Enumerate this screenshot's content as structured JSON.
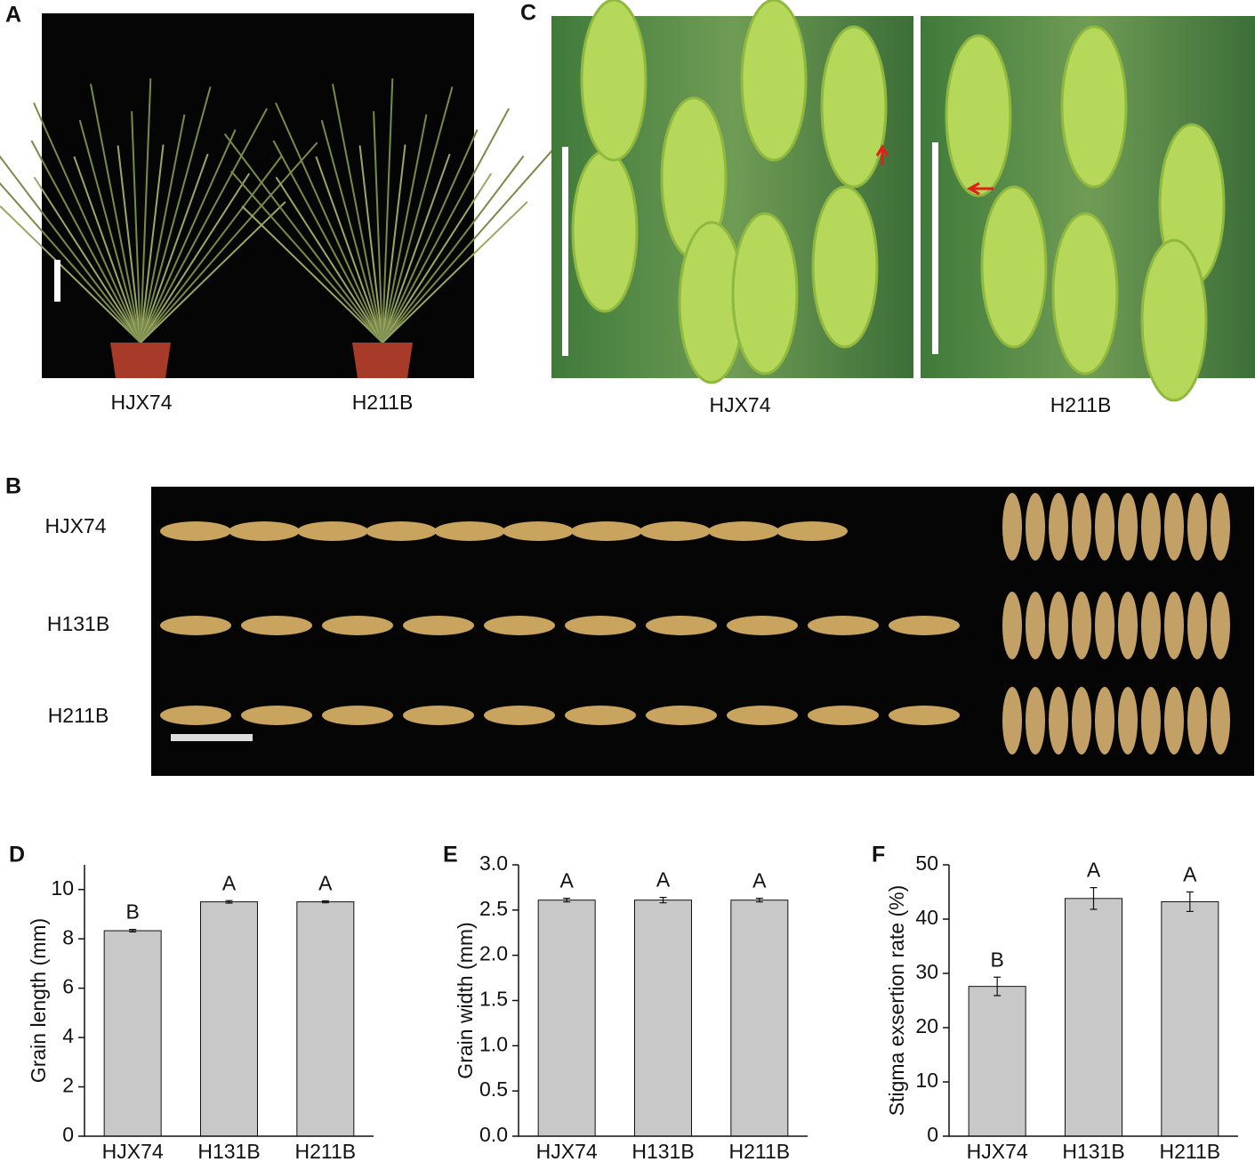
{
  "panels": {
    "A": {
      "letter": "A",
      "labels": [
        "HJX74",
        "H211B"
      ]
    },
    "B": {
      "letter": "B",
      "rows": [
        "HJX74",
        "H131B",
        "H211B"
      ]
    },
    "C": {
      "letter": "C",
      "labels": [
        "HJX74",
        "H211B"
      ]
    }
  },
  "chart_data": [
    {
      "type": "bar",
      "panel_label": "D",
      "y_label": "Grain length (mm)",
      "categories": [
        "HJX74",
        "H131B",
        "H211B"
      ],
      "values": [
        8.33,
        9.5,
        9.5
      ],
      "errors": [
        0.05,
        0.05,
        0.04
      ],
      "annotations": [
        "B",
        "A",
        "A"
      ],
      "color": "#c8c8c8",
      "ylim": [
        0,
        11
      ],
      "yticks": [
        0,
        2,
        4,
        6,
        8,
        10
      ]
    },
    {
      "type": "bar",
      "panel_label": "E",
      "y_label": "Grain width (mm)",
      "categories": [
        "HJX74",
        "H131B",
        "H211B"
      ],
      "values": [
        2.61,
        2.61,
        2.61
      ],
      "errors": [
        0.02,
        0.03,
        0.02
      ],
      "annotations": [
        "A",
        "A",
        "A"
      ],
      "color": "#c8c8c8",
      "ylim": [
        0,
        3.0
      ],
      "yticks": [
        {
          "value": 0,
          "label": "0.0"
        },
        0.5,
        {
          "value": 1,
          "label": "1.0"
        },
        1.5,
        {
          "value": 2,
          "label": "2.0"
        },
        2.5,
        {
          "value": 3,
          "label": "3.0"
        }
      ]
    },
    {
      "type": "bar",
      "panel_label": "F",
      "y_label": "Stigma exsertion rate (%)",
      "categories": [
        "HJX74",
        "H131B",
        "H211B"
      ],
      "values": [
        27.6,
        43.8,
        43.2
      ],
      "errors": [
        1.7,
        2.0,
        1.8
      ],
      "annotations": [
        "B",
        "A",
        "A"
      ],
      "color": "#c8c8c8",
      "ylim": [
        0,
        50
      ],
      "yticks": [
        0,
        10,
        20,
        30,
        40,
        50
      ]
    }
  ]
}
